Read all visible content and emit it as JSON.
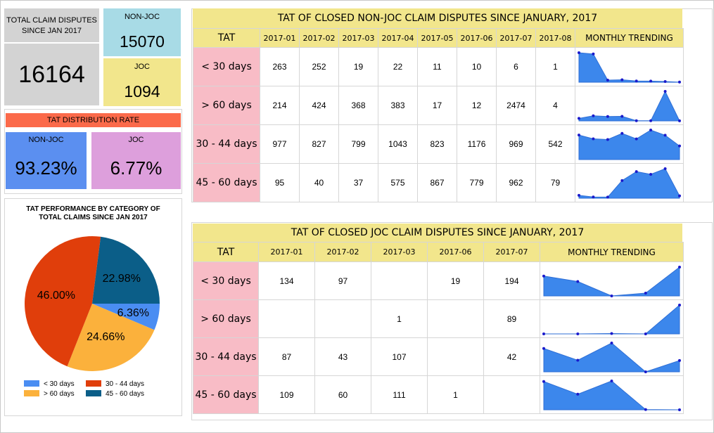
{
  "kpi": {
    "total_label_line1": "TOTAL CLAIM DISPUTES",
    "total_label_line2": "SINCE JAN 2017",
    "total_value": "16164",
    "nonjoc_label": "NON-JOC",
    "nonjoc_value": "15070",
    "joc_label": "JOC",
    "joc_value": "1094"
  },
  "rate": {
    "title": "TAT DISTRIBUTION RATE",
    "nonjoc_label": "NON-JOC",
    "nonjoc_value": "93.23%",
    "joc_label": "JOC",
    "joc_value": "6.77%"
  },
  "pie": {
    "title_line1": "TAT PERFORMANCE BY CATEGORY OF",
    "title_line2": "TOTAL CLAIMS SINCE JAN 2017",
    "slices": [
      {
        "name": "< 30 days",
        "value": 6.36,
        "label": "6.36%",
        "color": "#4a8df2"
      },
      {
        "name": "> 60 days",
        "value": 24.66,
        "label": "24.66%",
        "color": "#fbb13c"
      },
      {
        "name": "30 - 44 days",
        "value": 46.0,
        "label": "46.00%",
        "color": "#e03e0b"
      },
      {
        "name": "45 - 60 days",
        "value": 22.98,
        "label": "22.98%",
        "color": "#0b5e88"
      }
    ],
    "legend_order": [
      "< 30 days",
      "30 - 44 days",
      "> 60 days",
      "45 - 60 days"
    ]
  },
  "nonjoc_table": {
    "title": "TAT OF CLOSED NON-JOC CLAIM DISPUTES SINCE JANUARY, 2017",
    "tat_header": "TAT",
    "trend_header": "MONTHLY TRENDING",
    "months": [
      "2017-01",
      "2017-02",
      "2017-03",
      "2017-04",
      "2017-05",
      "2017-06",
      "2017-07",
      "2017-08"
    ],
    "rows": [
      {
        "label": "< 30 days",
        "values": [
          "263",
          "252",
          "19",
          "22",
          "11",
          "10",
          "6",
          "1"
        ]
      },
      {
        "label": "> 60 days",
        "values": [
          "214",
          "424",
          "368",
          "383",
          "17",
          "12",
          "2474",
          "4"
        ]
      },
      {
        "label": "30 - 44 days",
        "values": [
          "977",
          "827",
          "799",
          "1043",
          "823",
          "1176",
          "969",
          "542"
        ]
      },
      {
        "label": "45 - 60 days",
        "values": [
          "95",
          "40",
          "37",
          "575",
          "867",
          "779",
          "962",
          "79"
        ]
      }
    ]
  },
  "joc_table": {
    "title": "TAT OF CLOSED JOC CLAIM DISPUTES SINCE JANUARY, 2017",
    "tat_header": "TAT",
    "trend_header": "MONTHLY TRENDING",
    "months": [
      "2017-01",
      "2017-02",
      "2017-03",
      "2017-06",
      "2017-07"
    ],
    "rows": [
      {
        "label": "< 30 days",
        "values": [
          "134",
          "97",
          "",
          "19",
          "194"
        ]
      },
      {
        "label": "> 60 days",
        "values": [
          "",
          "",
          "1",
          "",
          "89"
        ]
      },
      {
        "label": "30 - 44 days",
        "values": [
          "87",
          "43",
          "107",
          "",
          "42"
        ]
      },
      {
        "label": "45 - 60 days",
        "values": [
          "109",
          "60",
          "111",
          "1",
          ""
        ]
      }
    ]
  },
  "colors": {
    "header_yellow": "#f2e68c",
    "row_pink": "#f8bcc6",
    "spark_fill": "#3c87ec",
    "spark_point": "#1a1acc",
    "kpi_gray": "#d3d3d3",
    "kpi_blue": "#a8dbe6",
    "rate_red": "#fb6a4a",
    "rate_blue": "#5b8ff0",
    "rate_purple": "#dd9fdc"
  }
}
